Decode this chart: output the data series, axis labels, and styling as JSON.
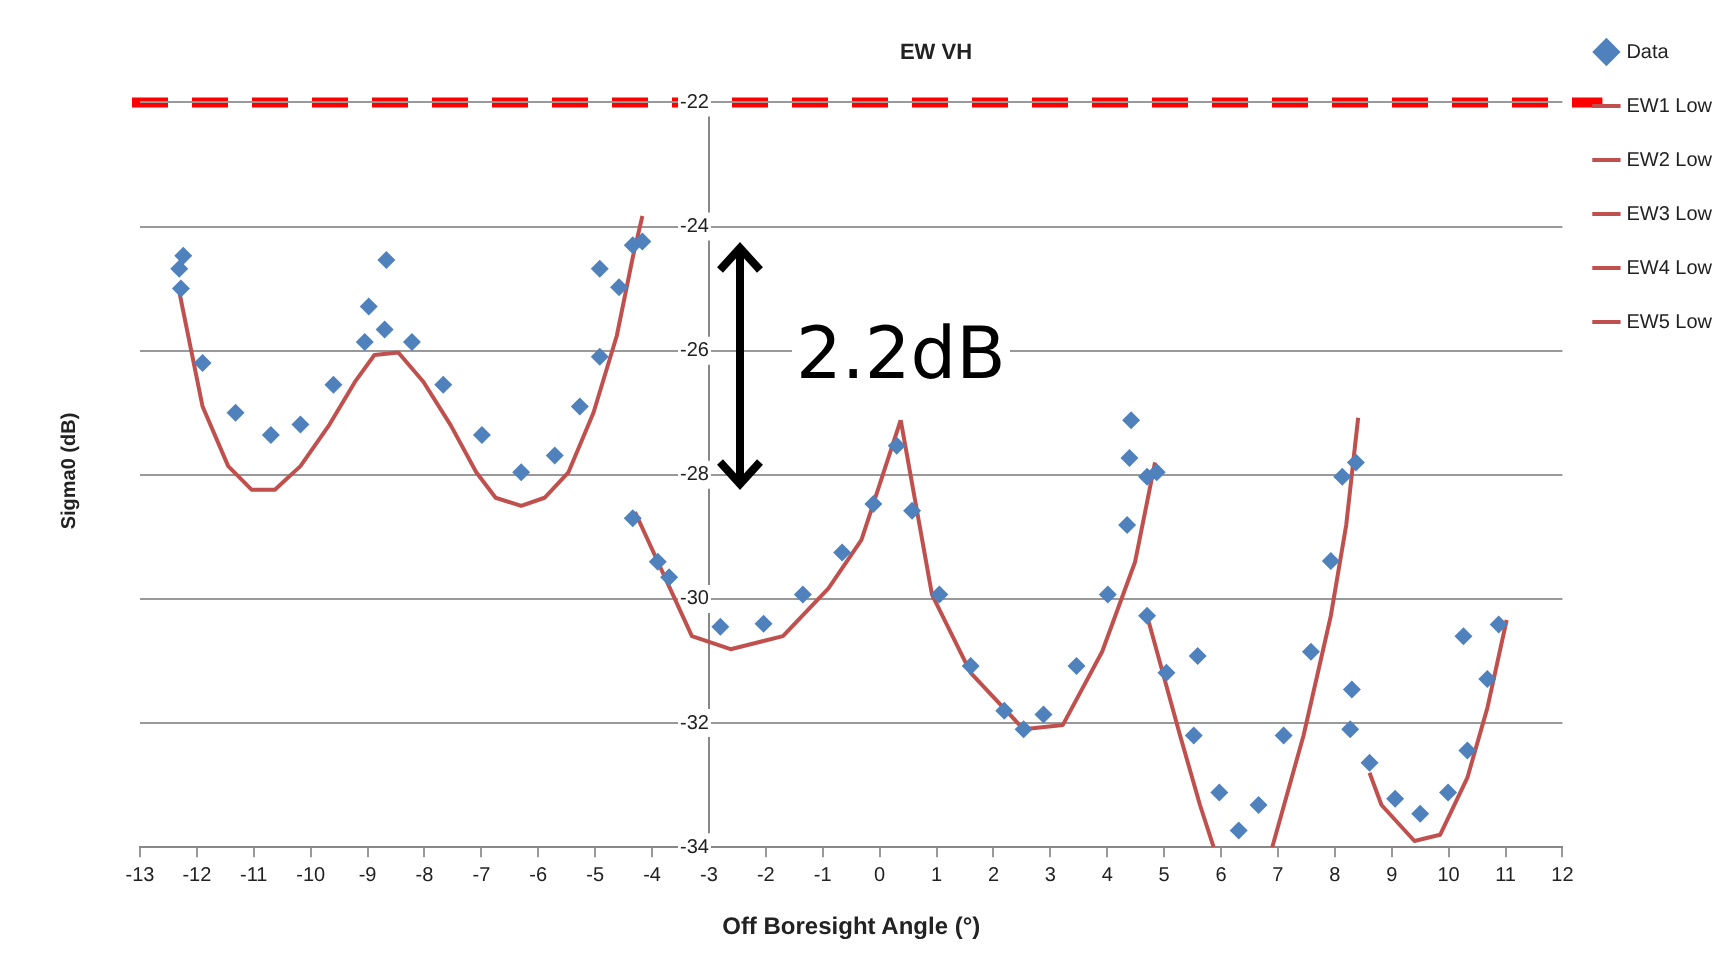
{
  "chart_data": {
    "type": "scatter",
    "title": "EW VH",
    "xlabel": "Off Boresight Angle (°)",
    "ylabel": "Sigma0 (dB)",
    "xlim": [
      -13,
      12
    ],
    "xticks": [
      -13,
      -12,
      -11,
      -10,
      -9,
      -8,
      -7,
      -6,
      -5,
      -4,
      -3,
      -2,
      -1,
      0,
      1,
      2,
      3,
      4,
      5,
      6,
      7,
      8,
      9,
      10,
      11,
      12
    ],
    "ylim": [
      -34,
      -22
    ],
    "yticks": [
      -34,
      -32,
      -30,
      -28,
      -26,
      -24,
      -22
    ],
    "grid": "y",
    "legend": "right",
    "ref_lines": [
      {
        "axis": "y",
        "value": -22,
        "color": "#ff0000",
        "line_style": "dashed"
      }
    ],
    "annotations": [
      "2.2dB"
    ],
    "series": [
      {
        "name": "Data",
        "marker": "diamond",
        "color": "#4f81bd",
        "x": [
          -12.31,
          -12.24,
          -12.28,
          -11.9,
          -11.32,
          -10.7,
          -10.18,
          -9.6,
          -9.05,
          -8.98,
          -8.7,
          -8.67,
          -8.22,
          -7.67,
          -6.99,
          -6.3,
          -5.71,
          -5.27,
          -4.92,
          -4.92,
          -4.58,
          -4.34,
          -4.17,
          -4.34,
          -3.9,
          -3.7,
          -2.8,
          -2.04,
          -1.35,
          -0.66,
          -0.11,
          0.3,
          0.57,
          1.05,
          1.6,
          2.19,
          2.53,
          2.88,
          3.46,
          4.01,
          4.35,
          4.39,
          4.42,
          4.7,
          4.87,
          4.7,
          5.04,
          5.52,
          5.59,
          5.97,
          6.31,
          6.66,
          7.1,
          7.58,
          7.93,
          8.13,
          8.37,
          8.27,
          8.3,
          8.61,
          9.06,
          9.5,
          9.99,
          10.26,
          10.33,
          10.68,
          10.88
        ],
        "values": [
          -24.68,
          -24.47,
          -25.0,
          -26.2,
          -27.0,
          -27.36,
          -27.19,
          -26.55,
          -25.86,
          -25.29,
          -25.66,
          -24.54,
          -25.86,
          -26.55,
          -27.36,
          -27.96,
          -27.69,
          -26.9,
          -26.1,
          -24.68,
          -24.98,
          -24.3,
          -24.24,
          -28.7,
          -29.4,
          -29.65,
          -30.45,
          -30.4,
          -29.93,
          -29.25,
          -28.47,
          -27.53,
          -28.58,
          -29.93,
          -31.08,
          -31.8,
          -32.1,
          -31.86,
          -31.08,
          -29.93,
          -28.81,
          -27.73,
          -27.12,
          -28.03,
          -27.96,
          -30.27,
          -31.19,
          -32.2,
          -30.92,
          -33.12,
          -33.73,
          -33.32,
          -32.2,
          -30.85,
          -29.39,
          -28.03,
          -27.8,
          -32.1,
          -31.46,
          -32.64,
          -33.22,
          -33.46,
          -33.12,
          -30.6,
          -32.44,
          -31.29,
          -30.41
        ]
      },
      {
        "name": "EW1 Low",
        "type": "line",
        "color": "#c0504d",
        "x": [
          -12.31,
          -11.9,
          -11.45,
          -11.04,
          -10.63,
          -10.18,
          -9.67,
          -9.22,
          -8.88,
          -8.46,
          -8.02,
          -7.54,
          -7.09,
          -6.75,
          -6.3,
          -5.89,
          -5.47,
          -5.03,
          -4.62,
          -4.34,
          -4.17
        ],
        "values": [
          -25.05,
          -26.9,
          -27.86,
          -28.24,
          -28.24,
          -27.86,
          -27.19,
          -26.5,
          -26.07,
          -26.03,
          -26.5,
          -27.2,
          -27.96,
          -28.37,
          -28.5,
          -28.37,
          -27.96,
          -27.0,
          -25.76,
          -24.5,
          -23.83
        ]
      },
      {
        "name": "EW2 Low",
        "type": "line",
        "color": "#c0504d",
        "x": [
          -4.3,
          -3.3,
          -2.62,
          -1.7,
          -0.9,
          -0.32,
          0.37
        ],
        "values": [
          -28.6,
          -30.6,
          -30.81,
          -30.6,
          -29.83,
          -29.05,
          -27.12
        ]
      },
      {
        "name": "EW3 Low",
        "type": "line",
        "color": "#c0504d",
        "x": [
          0.37,
          0.92,
          1.6,
          2.53,
          3.22,
          3.91,
          4.49,
          4.84
        ],
        "values": [
          -27.12,
          -29.93,
          -31.19,
          -32.1,
          -32.03,
          -30.85,
          -29.4,
          -27.8
        ]
      },
      {
        "name": "EW4 Low",
        "type": "line",
        "color": "#c0504d",
        "x": [
          4.7,
          5.28,
          5.63,
          5.87,
          6.4,
          6.9,
          7.45,
          7.93,
          8.2,
          8.41
        ],
        "values": [
          -30.27,
          -32.2,
          -33.32,
          -34.0,
          null,
          -34.0,
          -32.2,
          -30.27,
          -28.81,
          -27.08
        ]
      },
      {
        "name": "EW5 Low",
        "type": "line",
        "color": "#c0504d",
        "x": [
          8.61,
          8.82,
          9.4,
          9.85,
          10.33,
          10.68,
          11.02
        ],
        "values": [
          -32.8,
          -33.32,
          -33.9,
          -33.8,
          -32.88,
          -31.76,
          -30.34
        ]
      }
    ]
  }
}
